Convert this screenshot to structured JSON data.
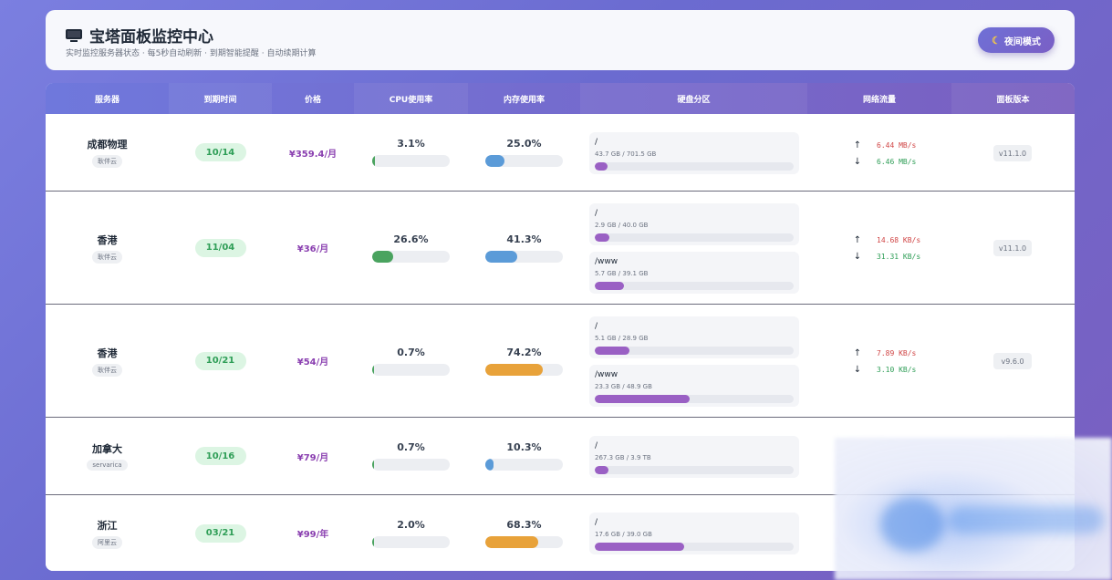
{
  "header": {
    "title": "宝塔面板监控中心",
    "subtitle": "实时监控服务器状态 · 每5秒自动刷新 · 到期智能提醒 · 自动续期计算",
    "night_mode_label": "夜间模式"
  },
  "table": {
    "columns": [
      "服务器",
      "到期时间",
      "价格",
      "CPU使用率",
      "内存使用率",
      "硬盘分区",
      "网络流量",
      "面板版本"
    ],
    "rows": [
      {
        "name": "成都物理",
        "tag": "耿伴云",
        "expire": "10/14",
        "price": "¥359.4/月",
        "cpu": "3.1%",
        "cpu_value": 3.1,
        "mem": "25.0%",
        "mem_value": 25.0,
        "disks": [
          {
            "mount": "/",
            "size": "43.7 GB / 701.5 GB",
            "value": 6.2
          }
        ],
        "up": "6.44 MB/s",
        "down": "6.46 MB/s",
        "version": "v11.1.0"
      },
      {
        "name": "香港",
        "tag": "耿伴云",
        "expire": "11/04",
        "price": "¥36/月",
        "cpu": "26.6%",
        "cpu_value": 26.6,
        "mem": "41.3%",
        "mem_value": 41.3,
        "disks": [
          {
            "mount": "/",
            "size": "2.9 GB / 40.0 GB",
            "value": 7.3
          },
          {
            "mount": "/www",
            "size": "5.7 GB / 39.1 GB",
            "value": 14.6
          }
        ],
        "up": "14.68 KB/s",
        "down": "31.31 KB/s",
        "version": "v11.1.0"
      },
      {
        "name": "香港",
        "tag": "耿伴云",
        "expire": "10/21",
        "price": "¥54/月",
        "cpu": "0.7%",
        "cpu_value": 0.7,
        "mem": "74.2%",
        "mem_value": 74.2,
        "disks": [
          {
            "mount": "/",
            "size": "5.1 GB / 28.9 GB",
            "value": 17.6
          },
          {
            "mount": "/www",
            "size": "23.3 GB / 48.9 GB",
            "value": 47.6
          }
        ],
        "up": "7.89 KB/s",
        "down": "3.10 KB/s",
        "version": "v9.6.0"
      },
      {
        "name": "加拿大",
        "tag": "servarica",
        "expire": "10/16",
        "price": "¥79/月",
        "cpu": "0.7%",
        "cpu_value": 0.7,
        "mem": "10.3%",
        "mem_value": 10.3,
        "disks": [
          {
            "mount": "/",
            "size": "267.3 GB / 3.9 TB",
            "value": 6.7
          }
        ],
        "up": "",
        "down": "",
        "version": ""
      },
      {
        "name": "浙江",
        "tag": "阿里云",
        "expire": "03/21",
        "price": "¥99/年",
        "cpu": "2.0%",
        "cpu_value": 2.0,
        "mem": "68.3%",
        "mem_value": 68.3,
        "disks": [
          {
            "mount": "/",
            "size": "17.6 GB / 39.0 GB",
            "value": 45.1
          }
        ],
        "up": "",
        "down": "",
        "version": ""
      }
    ]
  },
  "icons": {
    "title": "monitor-icon",
    "night": "moon-icon",
    "up": "arrow-up-icon",
    "down": "arrow-down-icon"
  },
  "colors": {
    "cpu": "#4aa35f",
    "mem_low": "#5b9bd8",
    "mem_high": "#e8a23a",
    "disk": "#9a60c4",
    "up": "#d04545",
    "down": "#2f9e57"
  }
}
